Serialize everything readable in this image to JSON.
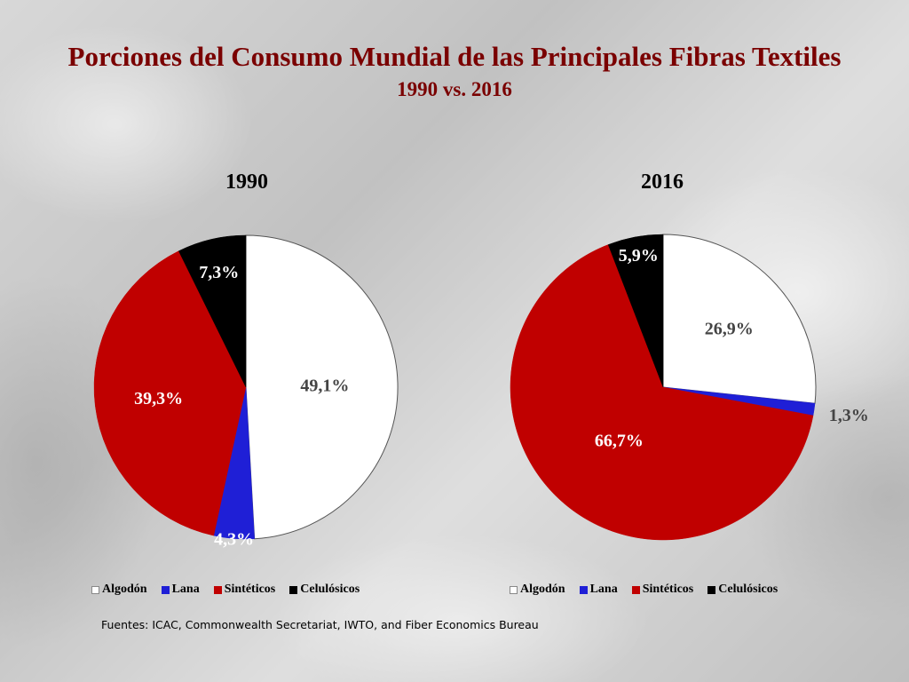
{
  "title": "Porciones del Consumo Mundial de las Principales Fibras Textiles",
  "subtitle": "1990 vs. 2016",
  "source": "Fuentes: ICAC, Commonwealth Secretariat, IWTO, and Fiber Economics Bureau",
  "legend_labels": [
    "Algodón",
    "Lana",
    "Sintéticos",
    "Celulósicos"
  ],
  "colors": {
    "Algodón": "#ffffff",
    "Lana": "#1f1fd6",
    "Sintéticos": "#c00000",
    "Celulósicos": "#000000",
    "title": "#7a0000"
  },
  "chart_data": [
    {
      "type": "pie",
      "title": "1990",
      "categories": [
        "Algodón",
        "Lana",
        "Sintéticos",
        "Celulósicos"
      ],
      "values": [
        49.1,
        4.3,
        39.3,
        7.3
      ],
      "labels": [
        "49,1%",
        "4,3%",
        "39,3%",
        "7,3%"
      ],
      "legend_position": "bottom"
    },
    {
      "type": "pie",
      "title": "2016",
      "categories": [
        "Algodón",
        "Lana",
        "Sintéticos",
        "Celulósicos"
      ],
      "values": [
        26.9,
        1.3,
        66.7,
        5.9
      ],
      "labels": [
        "26,9%",
        "1,3%",
        "66,7%",
        "5,9%"
      ],
      "legend_position": "bottom"
    }
  ]
}
